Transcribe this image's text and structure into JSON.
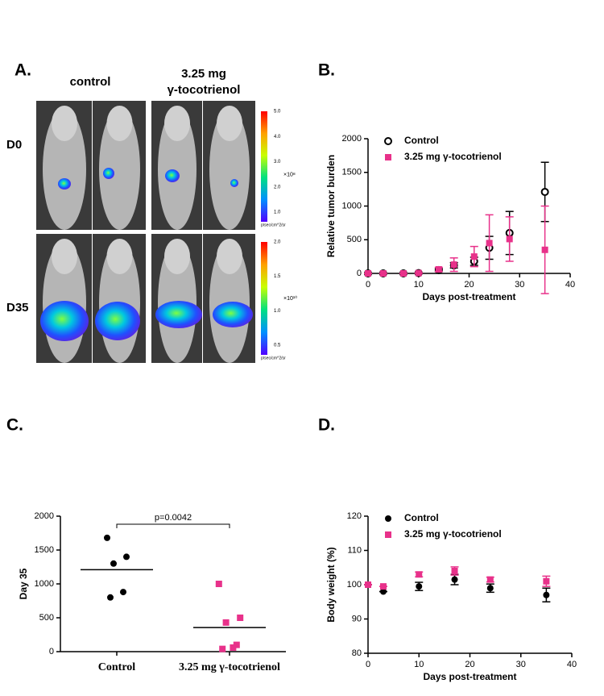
{
  "panel_labels": [
    "A.",
    "B.",
    "C.",
    "D."
  ],
  "imaging": {
    "columns": [
      {
        "lines": [
          "control"
        ]
      },
      {
        "lines": [
          "3.25 mg",
          "γ-tocotrienol"
        ]
      }
    ],
    "rows": [
      "D0",
      "D35"
    ],
    "colorbars": [
      {
        "ticks": [
          "5.0",
          "4.0",
          "3.0",
          "2.0",
          "1.0"
        ],
        "scale": "×10⁸",
        "unit": "p/sec/cm^2/sr"
      },
      {
        "ticks": [
          "2.0",
          "1.5",
          "1.0",
          "0.5"
        ],
        "scale": "×10¹⁰",
        "unit": "p/sec/cm^2/sr"
      }
    ]
  },
  "chart_data": [
    {
      "type": "scatter",
      "xlabel": "Days post-treatment",
      "ylabel": "Relative tumor burden",
      "x": [
        0,
        3,
        7,
        10,
        14,
        17,
        21,
        24,
        28,
        35
      ],
      "xlim": [
        0,
        40
      ],
      "xticks": [
        0,
        10,
        20,
        30,
        40
      ],
      "ylim": [
        0,
        2000
      ],
      "yticks": [
        0,
        500,
        1000,
        1500,
        2000
      ],
      "legend": "upper left",
      "series": [
        {
          "name": "Control",
          "color": "#000000",
          "marker": "open-circle",
          "values": [
            0,
            0,
            0,
            5,
            50,
            120,
            180,
            380,
            600,
            1210
          ],
          "errors": [
            0,
            0,
            0,
            5,
            20,
            40,
            60,
            170,
            320,
            440
          ]
        },
        {
          "name": "3.25 mg γ-tocotrienol",
          "color": "#e8318a",
          "marker": "square",
          "values": [
            0,
            0,
            0,
            5,
            60,
            130,
            250,
            450,
            510,
            350
          ],
          "errors": [
            0,
            0,
            0,
            5,
            30,
            100,
            150,
            420,
            330,
            650
          ]
        }
      ]
    },
    {
      "type": "dot",
      "ylabel": "Day 35",
      "annotation": "p=0.0042",
      "categories": [
        "Control",
        "3.25 mg γ-tocotrienol"
      ],
      "ylim": [
        0,
        2000
      ],
      "yticks": [
        0,
        500,
        1000,
        1500,
        2000
      ],
      "groups": [
        {
          "color": "#000000",
          "marker": "circle",
          "values": [
            1680,
            1400,
            1300,
            880,
            800
          ],
          "mean": 1210
        },
        {
          "color": "#e8318a",
          "marker": "square",
          "values": [
            1000,
            500,
            430,
            100,
            40,
            60
          ],
          "mean": 355
        }
      ]
    },
    {
      "type": "scatter",
      "xlabel": "Days post-treatment",
      "ylabel": "Body weight (%)",
      "x": [
        0,
        3,
        10,
        17,
        24,
        35
      ],
      "xlim": [
        0,
        40
      ],
      "xticks": [
        0,
        10,
        20,
        30,
        40
      ],
      "ylim": [
        80,
        120
      ],
      "yticks": [
        80,
        90,
        100,
        110,
        120
      ],
      "legend": "upper left",
      "series": [
        {
          "name": "Control",
          "color": "#000000",
          "marker": "circle",
          "values": [
            100,
            98,
            99.5,
            101.5,
            99,
            97
          ],
          "errors": [
            0,
            0,
            1.2,
            1.5,
            1.2,
            2
          ]
        },
        {
          "name": "3.25 mg γ-tocotrienol",
          "color": "#e8318a",
          "marker": "square",
          "values": [
            100,
            99.5,
            103,
            104,
            101.5,
            101
          ],
          "errors": [
            0,
            0,
            0.7,
            1.2,
            0.7,
            1.5
          ]
        }
      ]
    }
  ]
}
